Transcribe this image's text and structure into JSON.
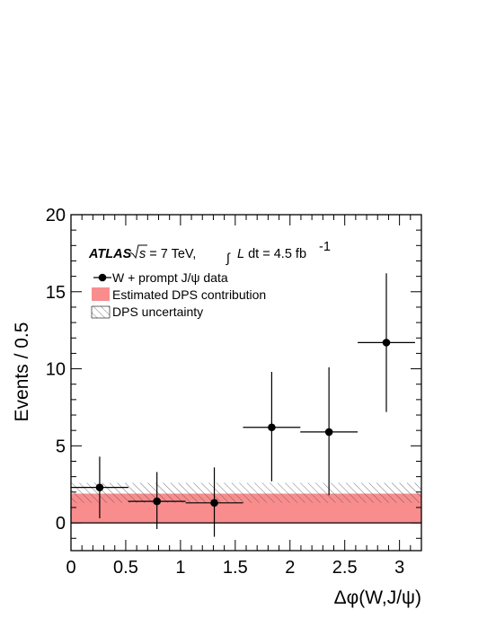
{
  "chart_data": {
    "type": "scatter",
    "xlabel": "Δφ(W,J/ψ)",
    "ylabel": "Events / 0.5",
    "xlim": [
      0,
      3.2
    ],
    "ylim": [
      -1.8,
      20
    ],
    "x_ticks": [
      "0",
      "0.5",
      "1",
      "1.5",
      "2",
      "2.5",
      "3"
    ],
    "y_ticks": [
      "0",
      "5",
      "10",
      "15",
      "20"
    ],
    "grid": false,
    "legend_position": "top-left",
    "annotation": {
      "experiment": "ATLAS",
      "energy": "s = 7 TeV,",
      "lumi": "L dt = 4.5 fb",
      "lumi_exp": "-1"
    },
    "series": [
      {
        "name": "W + prompt J/ψ data",
        "x": [
          0.262,
          0.785,
          1.309,
          1.833,
          2.356,
          2.88
        ],
        "x_err": [
          0.262,
          0.262,
          0.262,
          0.262,
          0.262,
          0.262
        ],
        "y": [
          2.3,
          1.4,
          1.3,
          6.2,
          5.9,
          11.7
        ],
        "y_err_low": [
          2.0,
          1.8,
          2.2,
          3.5,
          4.1,
          4.5
        ],
        "y_err_high": [
          2.0,
          1.9,
          2.3,
          3.6,
          4.2,
          4.5
        ]
      }
    ],
    "dps_band": {
      "name": "Estimated DPS contribution",
      "value": 1.9,
      "color": "#f98c8c"
    },
    "dps_uncertainty": {
      "name": "DPS uncertainty",
      "low": 1.3,
      "high": 2.6
    }
  }
}
